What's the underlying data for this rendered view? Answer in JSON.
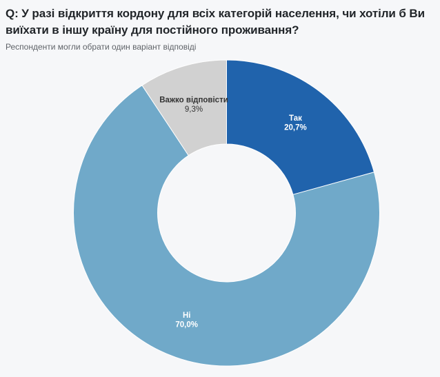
{
  "header": {
    "title": "Q: У разі відкриття кордону для всіх категорій населення, чи хотіли б Ви виїхати в іншу країну для постійного проживання?",
    "subtitle": "Респонденти могли обрати один варіант відповіді"
  },
  "colors": {
    "background": "#F6F7F9",
    "title_text": "#212529",
    "subtitle_text": "#5F6368",
    "slice_border": "#FFFFFF"
  },
  "chart_data": {
    "type": "pie",
    "donut": true,
    "start_angle_deg": 0,
    "direction": "clockwise",
    "title": "Q: У разі відкриття кордону для всіх категорій населення, чи хотіли б Ви виїхати в іншу країну для постійного проживання?",
    "subtitle": "Респонденти могли обрати один варіант відповіді",
    "unit": "%",
    "legend": "none",
    "segments": [
      {
        "slug": "yes",
        "label": "Так",
        "value": 20.7,
        "value_display": "20,7%",
        "color": "#2063AC",
        "label_color": "#FFFFFF"
      },
      {
        "slug": "no",
        "label": "Ні",
        "value": 70.0,
        "value_display": "70,0%",
        "color": "#70A9C9",
        "label_color": "#FFFFFF"
      },
      {
        "slug": "hard-to-answer",
        "label": "Важко відповісти",
        "value": 9.3,
        "value_display": "9,3%",
        "color": "#D1D1D1",
        "label_color": "#333333"
      }
    ]
  }
}
